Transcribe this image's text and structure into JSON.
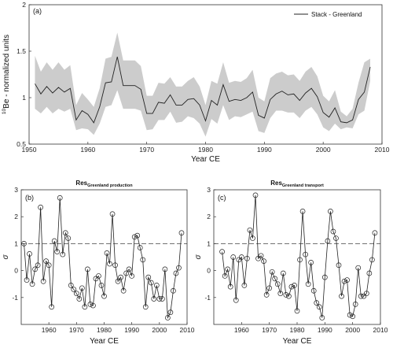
{
  "chart_data": [
    {
      "id": "a",
      "type": "line",
      "panel_label": "(a)",
      "xlabel": "Year CE",
      "ylabel_sup": "10",
      "ylabel_main": "Be - normalized units",
      "xlim": [
        1950,
        2010
      ],
      "ylim": [
        0.5,
        2.0
      ],
      "xticks": [
        1950,
        1960,
        1970,
        1980,
        1990,
        2000,
        2010
      ],
      "yticks": [
        0.5,
        1,
        1.5,
        2
      ],
      "ytick_labels": [
        "0.5",
        "1",
        "1.5",
        "2"
      ],
      "legend": {
        "position": "top-right",
        "label": "Stack - Greenland"
      },
      "series": [
        {
          "name": "Stack - Greenland",
          "color": "#222222",
          "band_color": "#cccccc",
          "x": [
            1951,
            1952,
            1953,
            1954,
            1955,
            1956,
            1957,
            1958,
            1959,
            1960,
            1961,
            1962,
            1963,
            1964,
            1965,
            1966,
            1967,
            1968,
            1969,
            1970,
            1971,
            1972,
            1973,
            1974,
            1975,
            1976,
            1977,
            1978,
            1979,
            1980,
            1981,
            1982,
            1983,
            1984,
            1985,
            1986,
            1987,
            1988,
            1989,
            1990,
            1991,
            1992,
            1993,
            1994,
            1995,
            1996,
            1997,
            1998,
            1999,
            2000,
            2001,
            2002,
            2003,
            2004,
            2005,
            2006,
            2007,
            2008
          ],
          "y": [
            1.15,
            1.04,
            1.12,
            1.05,
            1.11,
            1.06,
            1.1,
            0.76,
            0.86,
            0.82,
            0.73,
            0.9,
            1.16,
            1.17,
            1.44,
            1.13,
            1.13,
            1.13,
            1.09,
            0.83,
            0.83,
            0.95,
            0.94,
            1.03,
            0.92,
            0.92,
            0.98,
            0.99,
            0.92,
            0.75,
            0.97,
            0.92,
            1.14,
            0.96,
            0.98,
            0.97,
            1.0,
            1.06,
            0.81,
            0.78,
            0.98,
            1.04,
            1.07,
            1.03,
            1.04,
            0.97,
            1.05,
            1.1,
            1.01,
            0.84,
            0.79,
            0.89,
            0.74,
            0.73,
            0.76,
            0.98,
            1.06,
            1.33
          ],
          "lower": [
            0.88,
            0.83,
            0.9,
            0.83,
            0.88,
            0.85,
            0.88,
            0.65,
            0.67,
            0.66,
            0.6,
            0.72,
            0.9,
            0.92,
            1.08,
            0.88,
            0.88,
            0.88,
            0.86,
            0.65,
            0.66,
            0.76,
            0.76,
            0.85,
            0.73,
            0.74,
            0.8,
            0.78,
            0.72,
            0.58,
            0.77,
            0.72,
            0.92,
            0.76,
            0.8,
            0.79,
            0.82,
            0.85,
            0.64,
            0.62,
            0.78,
            0.86,
            0.86,
            0.84,
            0.84,
            0.78,
            0.86,
            0.9,
            0.82,
            0.68,
            0.64,
            0.72,
            0.66,
            0.68,
            0.67,
            0.82,
            0.86,
            1.18
          ],
          "upper": [
            1.45,
            1.28,
            1.38,
            1.3,
            1.38,
            1.3,
            1.35,
            0.92,
            1.05,
            0.98,
            0.9,
            1.1,
            1.42,
            1.44,
            1.7,
            1.4,
            1.4,
            1.4,
            1.34,
            1.02,
            1.02,
            1.16,
            1.15,
            1.22,
            1.12,
            1.12,
            1.18,
            1.22,
            1.12,
            0.92,
            1.18,
            1.15,
            1.38,
            1.16,
            1.18,
            1.17,
            1.21,
            1.3,
            1.0,
            0.96,
            1.21,
            1.26,
            1.28,
            1.24,
            1.25,
            1.18,
            1.28,
            1.33,
            1.23,
            1.02,
            0.96,
            1.08,
            0.85,
            0.8,
            0.88,
            1.16,
            1.38,
            1.42
          ]
        }
      ]
    },
    {
      "id": "b",
      "type": "line",
      "panel_label": "(b)",
      "title_main": "Res",
      "title_sub": "Greenland production",
      "xlabel": "Year CE",
      "ylabel": "σ",
      "xlim": [
        1950,
        2010
      ],
      "ylim": [
        -2,
        3
      ],
      "xticks": [
        1960,
        1970,
        1980,
        1990,
        2000,
        2010
      ],
      "yticks": [
        -1,
        0,
        1,
        2,
        3
      ],
      "ytick_labels": [
        "-1",
        "0",
        "1",
        "2",
        "3"
      ],
      "reference_line": 1,
      "series": [
        {
          "name": "",
          "color": "#222222",
          "x": [
            1951,
            1952,
            1953,
            1954,
            1955,
            1956,
            1957,
            1958,
            1959,
            1960,
            1961,
            1962,
            1963,
            1964,
            1965,
            1966,
            1967,
            1968,
            1969,
            1970,
            1971,
            1972,
            1973,
            1974,
            1975,
            1976,
            1977,
            1978,
            1979,
            1980,
            1981,
            1982,
            1983,
            1984,
            1985,
            1986,
            1987,
            1988,
            1989,
            1990,
            1991,
            1992,
            1993,
            1994,
            1995,
            1996,
            1997,
            1998,
            1999,
            2000,
            2001,
            2002,
            2003,
            2004,
            2005,
            2006,
            2007,
            2008
          ],
          "y": [
            1.0,
            -0.35,
            0.62,
            -0.5,
            0.05,
            0.2,
            2.35,
            -0.4,
            0.35,
            0.2,
            -1.35,
            1.1,
            0.7,
            2.7,
            0.6,
            1.4,
            1.2,
            -0.55,
            -0.7,
            -0.85,
            -1.05,
            -0.65,
            -1.35,
            0.05,
            -1.25,
            -1.3,
            -0.3,
            -0.2,
            -0.55,
            -0.95,
            0.65,
            0.25,
            2.1,
            0.2,
            -0.4,
            -0.25,
            -0.75,
            -0.1,
            0.05,
            -0.2,
            1.25,
            1.3,
            0.85,
            0.4,
            -1.35,
            -0.25,
            -0.45,
            -1.05,
            -0.55,
            -1.05,
            -1.05,
            0.05,
            -1.75,
            -1.55,
            -0.75,
            -0.1,
            0.1,
            1.4
          ]
        }
      ]
    },
    {
      "id": "c",
      "type": "line",
      "panel_label": "(c)",
      "title_main": "Res",
      "title_sub": "Greenland transport",
      "xlabel": "Year CE",
      "ylabel": "σ",
      "xlim": [
        1950,
        2010
      ],
      "ylim": [
        -2,
        3
      ],
      "xticks": [
        1960,
        1970,
        1980,
        1990,
        2000,
        2010
      ],
      "yticks": [
        -1,
        0,
        1,
        2,
        3
      ],
      "ytick_labels": [
        "-1",
        "0",
        "1",
        "2",
        "3"
      ],
      "reference_line": 1,
      "series": [
        {
          "name": "",
          "color": "#222222",
          "x": [
            1953,
            1954,
            1955,
            1956,
            1957,
            1958,
            1959,
            1960,
            1961,
            1962,
            1963,
            1964,
            1965,
            1966,
            1967,
            1968,
            1969,
            1970,
            1971,
            1972,
            1973,
            1974,
            1975,
            1976,
            1977,
            1978,
            1979,
            1980,
            1981,
            1982,
            1983,
            1984,
            1985,
            1986,
            1987,
            1988,
            1989,
            1990,
            1991,
            1992,
            1993,
            1994,
            1995,
            1996,
            1997,
            1998,
            1999,
            2000,
            2001,
            2002,
            2003,
            2004,
            2005,
            2006,
            2007,
            2008
          ],
          "y": [
            0.7,
            -0.2,
            0.05,
            -0.6,
            0.5,
            -1.1,
            0.4,
            0.5,
            -0.55,
            0.45,
            1.5,
            1.2,
            2.8,
            0.45,
            0.55,
            0.35,
            -0.9,
            -0.65,
            -0.05,
            -0.3,
            -0.5,
            -0.85,
            -0.1,
            -0.9,
            -0.95,
            -0.6,
            -0.55,
            -1.5,
            0.4,
            2.2,
            0.6,
            -0.5,
            0.3,
            -0.75,
            -1.2,
            -1.35,
            -1.75,
            -0.25,
            1.1,
            2.2,
            1.45,
            1.2,
            0.2,
            -0.95,
            -0.4,
            -0.35,
            -1.65,
            -1.7,
            -1.25,
            0.1,
            -0.95,
            -0.95,
            -0.85,
            -0.1,
            0.4,
            1.4
          ]
        }
      ]
    }
  ]
}
